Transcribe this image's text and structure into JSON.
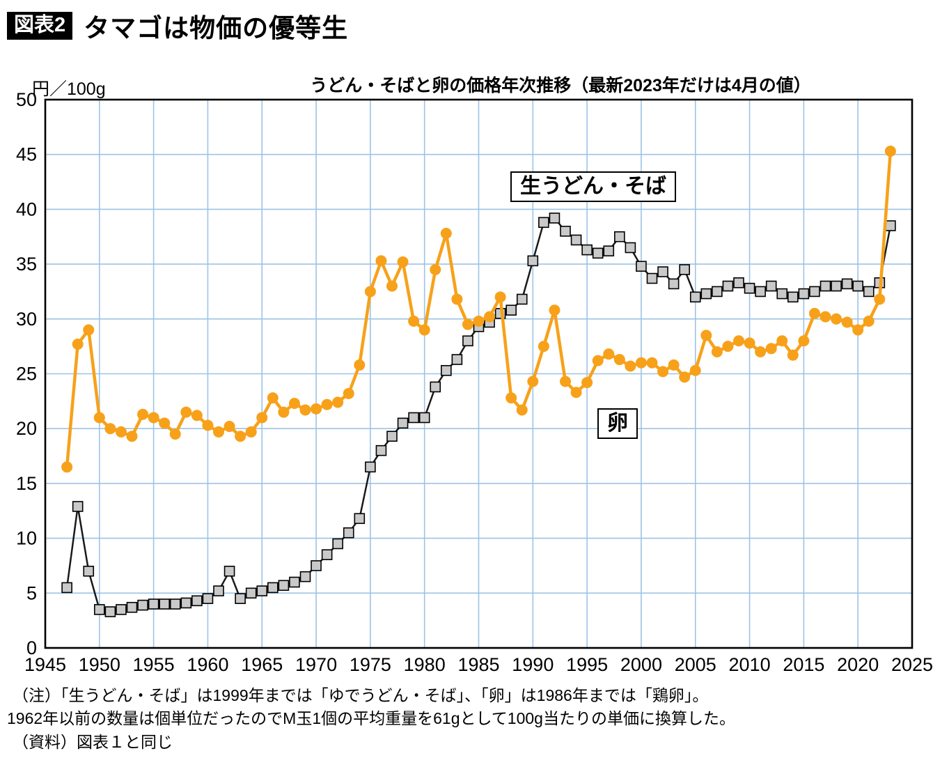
{
  "header": {
    "figure_tag": "図表2",
    "title": "タマゴは物価の優等生"
  },
  "chart": {
    "title": "うどん・そばと卵の価格年次推移（最新2023年だけは4月の値）",
    "unit_label": "円／100g"
  },
  "notes": {
    "line1": "（注）「生うどん・そば」は1999年までは「ゆでうどん・そば」、「卵」は1986年までは「鶏卵」。",
    "line2": "1962年以前の数量は個単位だったのでM玉1個の平均重量を61gとして100g当たりの単価に換算した。",
    "line3": "（資料）図表１と同じ"
  },
  "colors": {
    "grid": "#9DC3E6",
    "frame": "#000000",
    "egg": "#F7A11A",
    "udon_line": "#1a1a1a",
    "udon_marker_fill": "#C9C9C9"
  },
  "chart_data": {
    "type": "line",
    "title": "うどん・そばと卵の価格年次推移（最新2023年だけは4月の値）",
    "ylabel": "円／100g",
    "xlabel": "",
    "xlim": [
      1945,
      2025
    ],
    "ylim": [
      0,
      50
    ],
    "x_ticks": [
      1945,
      1950,
      1955,
      1960,
      1965,
      1970,
      1975,
      1980,
      1985,
      1990,
      1995,
      2000,
      2005,
      2010,
      2015,
      2020,
      2025
    ],
    "y_ticks": [
      0,
      5,
      10,
      15,
      20,
      25,
      30,
      35,
      40,
      45,
      50
    ],
    "grid": true,
    "legend_position": "inline-annotations",
    "years": [
      1947,
      1948,
      1949,
      1950,
      1951,
      1952,
      1953,
      1954,
      1955,
      1956,
      1957,
      1958,
      1959,
      1960,
      1961,
      1962,
      1963,
      1964,
      1965,
      1966,
      1967,
      1968,
      1969,
      1970,
      1971,
      1972,
      1973,
      1974,
      1975,
      1976,
      1977,
      1978,
      1979,
      1980,
      1981,
      1982,
      1983,
      1984,
      1985,
      1986,
      1987,
      1988,
      1989,
      1990,
      1991,
      1992,
      1993,
      1994,
      1995,
      1996,
      1997,
      1998,
      1999,
      2000,
      2001,
      2002,
      2003,
      2004,
      2005,
      2006,
      2007,
      2008,
      2009,
      2010,
      2011,
      2012,
      2013,
      2014,
      2015,
      2016,
      2017,
      2018,
      2019,
      2020,
      2021,
      2022,
      2023
    ],
    "series": [
      {
        "name": "生うどん・そば",
        "marker": "square",
        "color": "#1a1a1a",
        "marker_fill": "#C9C9C9",
        "line_width": 2.5,
        "values": [
          5.5,
          12.9,
          7.0,
          3.5,
          3.3,
          3.5,
          3.7,
          3.9,
          4.0,
          4.0,
          4.0,
          4.1,
          4.3,
          4.5,
          5.2,
          7.0,
          4.5,
          5.0,
          5.2,
          5.5,
          5.7,
          6.0,
          6.5,
          7.5,
          8.5,
          9.5,
          10.5,
          11.8,
          16.5,
          18.0,
          19.3,
          20.5,
          21.0,
          21.0,
          23.8,
          25.3,
          26.3,
          28.0,
          29.3,
          29.7,
          30.5,
          30.8,
          31.8,
          35.3,
          38.8,
          39.2,
          38.0,
          37.2,
          36.3,
          36.0,
          36.2,
          37.5,
          36.5,
          34.8,
          33.7,
          34.3,
          33.2,
          34.5,
          32.0,
          32.3,
          32.5,
          33.0,
          33.3,
          32.8,
          32.5,
          33.0,
          32.3,
          32.0,
          32.3,
          32.5,
          33.0,
          33.0,
          33.2,
          33.0,
          32.5,
          33.3,
          38.5
        ]
      },
      {
        "name": "卵",
        "marker": "circle",
        "color": "#F7A11A",
        "line_width": 4.5,
        "values": [
          16.5,
          27.7,
          29.0,
          21.0,
          20.0,
          19.7,
          19.3,
          21.3,
          21.0,
          20.5,
          19.5,
          21.5,
          21.2,
          20.3,
          19.7,
          20.2,
          19.3,
          19.7,
          21.0,
          22.8,
          21.5,
          22.3,
          21.7,
          21.8,
          22.2,
          22.4,
          23.2,
          25.8,
          32.5,
          35.3,
          33.0,
          35.2,
          29.8,
          29.0,
          34.5,
          37.8,
          31.8,
          29.5,
          29.8,
          30.2,
          32.0,
          22.8,
          21.7,
          24.3,
          27.5,
          30.8,
          24.3,
          23.3,
          24.2,
          26.2,
          26.8,
          26.3,
          25.7,
          26.0,
          26.0,
          25.2,
          25.8,
          24.7,
          25.3,
          28.5,
          27.0,
          27.5,
          28.0,
          27.8,
          27.0,
          27.3,
          28.0,
          26.7,
          28.0,
          30.5,
          30.2,
          30.0,
          29.7,
          29.0,
          29.8,
          31.8,
          45.3
        ]
      }
    ]
  }
}
